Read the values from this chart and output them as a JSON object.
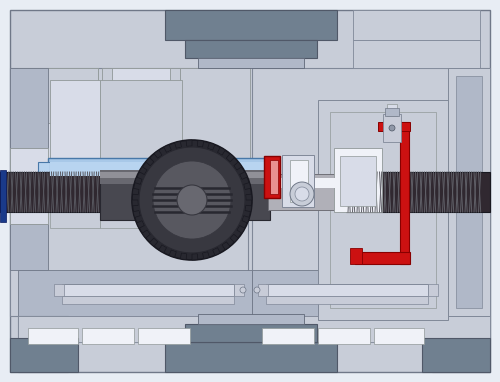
{
  "bg_color": "#e8edf4",
  "frame_color": "#c8cdd8",
  "body_light": "#c8cdd8",
  "body_mid": "#b0b8c8",
  "body_dark": "#9098a8",
  "dark_bracket": "#708090",
  "very_dark": "#505868",
  "blue_hi": "#a8c8e8",
  "blue_med": "#b8d4f0",
  "red_color": "#cc1111",
  "red_light": "#e89090",
  "white_part": "#e8ecf4",
  "off_white": "#d8dce8",
  "gear_black": "#282830",
  "gear_dark": "#383840",
  "gear_mid": "#585860",
  "gear_light": "#787880",
  "shaft_dark": "#484850",
  "shaft_mid": "#686870",
  "shaft_light": "#909098",
  "shaft_lighter": "#b0b0b8",
  "thread_bg": "#302830",
  "screw_silver": "#c8ccd8",
  "inner_white": "#f0f2f8",
  "panel_edge": "#808898",
  "blue_marker": "#1a3a8a"
}
